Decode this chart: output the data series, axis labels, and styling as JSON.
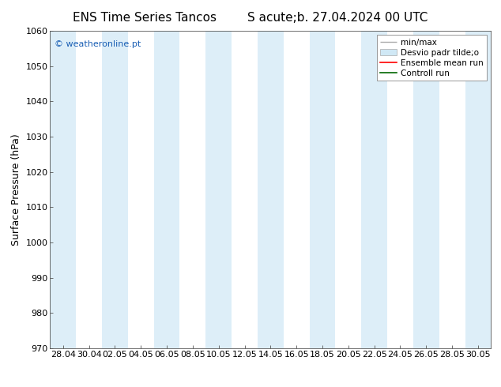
{
  "title_left": "ENS Time Series Tancos",
  "title_right": "S acute;b. 27.04.2024 00 UTC",
  "ylabel": "Surface Pressure (hPa)",
  "ylim": [
    970,
    1060
  ],
  "yticks": [
    970,
    980,
    990,
    1000,
    1010,
    1020,
    1030,
    1040,
    1050,
    1060
  ],
  "xtick_labels": [
    "28.04",
    "30.04",
    "02.05",
    "04.05",
    "06.05",
    "08.05",
    "10.05",
    "12.05",
    "14.05",
    "16.05",
    "18.05",
    "20.05",
    "22.05",
    "24.05",
    "26.05",
    "28.05",
    "30.05"
  ],
  "watermark": "© weatheronline.pt",
  "watermark_color": "#1a5fb4",
  "bg_color": "#ffffff",
  "plot_bg_color": "#ffffff",
  "band_color": "#ddeef8",
  "band_positions": [
    0,
    2,
    4,
    6,
    8,
    10,
    12,
    14,
    16
  ],
  "legend_label_minmax": "min/max",
  "legend_label_desvio": "Desvio padr tilde;o",
  "legend_label_ens": "Ensemble mean run",
  "legend_label_ctrl": "Controll run",
  "minmax_color": "#aaaaaa",
  "desvio_color": "#d0e8f5",
  "ens_color": "#ff0000",
  "ctrl_color": "#006600",
  "title_fontsize": 11,
  "ylabel_fontsize": 9,
  "tick_fontsize": 8,
  "watermark_fontsize": 8,
  "legend_fontsize": 7.5
}
